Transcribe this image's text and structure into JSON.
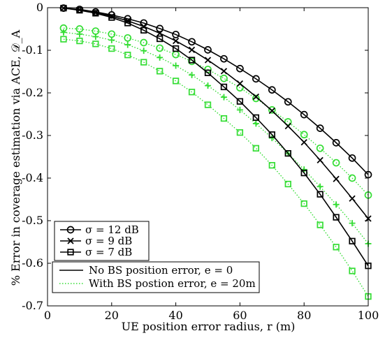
{
  "chart_data": {
    "type": "line",
    "title": "",
    "xlabel": "UE position error radius, r (m)",
    "ylabel": "% Error in coverage estimation via ACE, 𝒟_A",
    "xlim": [
      0,
      100
    ],
    "ylim": [
      -0.7,
      0
    ],
    "x_ticks": [
      "0",
      "20",
      "40",
      "60",
      "80",
      "100"
    ],
    "y_ticks": [
      "0",
      "-0.1",
      "-0.2",
      "-0.3",
      "-0.4",
      "-0.5",
      "-0.6",
      "-0.7"
    ],
    "x": [
      5,
      10,
      15,
      20,
      25,
      30,
      35,
      40,
      45,
      50,
      55,
      60,
      65,
      70,
      75,
      80,
      85,
      90,
      95,
      100
    ],
    "colors": {
      "no_error": "#000000",
      "with_error": "#33dd33"
    },
    "series": [
      {
        "sigma": "12 dB",
        "style": "solid",
        "marker": "circle",
        "values": [
          -0.001,
          -0.004,
          -0.01,
          -0.017,
          -0.026,
          -0.036,
          -0.049,
          -0.063,
          -0.08,
          -0.099,
          -0.12,
          -0.143,
          -0.167,
          -0.193,
          -0.221,
          -0.251,
          -0.283,
          -0.317,
          -0.353,
          -0.392
        ]
      },
      {
        "sigma": "9 dB",
        "style": "solid",
        "marker": "x",
        "values": [
          -0.001,
          -0.005,
          -0.011,
          -0.02,
          -0.031,
          -0.044,
          -0.06,
          -0.078,
          -0.099,
          -0.123,
          -0.149,
          -0.178,
          -0.209,
          -0.242,
          -0.278,
          -0.316,
          -0.358,
          -0.402,
          -0.448,
          -0.495
        ]
      },
      {
        "sigma": "7 dB",
        "style": "solid",
        "marker": "square",
        "values": [
          -0.001,
          -0.006,
          -0.013,
          -0.023,
          -0.036,
          -0.053,
          -0.073,
          -0.096,
          -0.123,
          -0.153,
          -0.186,
          -0.22,
          -0.258,
          -0.298,
          -0.342,
          -0.388,
          -0.438,
          -0.492,
          -0.548,
          -0.606
        ]
      },
      {
        "sigma": "12 dB",
        "style": "dotted",
        "marker": "circle",
        "values": [
          -0.048,
          -0.05,
          -0.055,
          -0.062,
          -0.071,
          -0.082,
          -0.095,
          -0.11,
          -0.126,
          -0.145,
          -0.166,
          -0.188,
          -0.213,
          -0.24,
          -0.268,
          -0.298,
          -0.33,
          -0.364,
          -0.4,
          -0.44
        ]
      },
      {
        "sigma": "9 dB",
        "style": "dotted",
        "marker": "plus",
        "values": [
          -0.058,
          -0.062,
          -0.068,
          -0.076,
          -0.087,
          -0.101,
          -0.117,
          -0.136,
          -0.158,
          -0.183,
          -0.21,
          -0.24,
          -0.272,
          -0.306,
          -0.342,
          -0.38,
          -0.42,
          -0.462,
          -0.506,
          -0.554
        ]
      },
      {
        "sigma": "7 dB",
        "style": "dotted",
        "marker": "square",
        "values": [
          -0.074,
          -0.078,
          -0.085,
          -0.096,
          -0.111,
          -0.128,
          -0.149,
          -0.172,
          -0.198,
          -0.228,
          -0.26,
          -0.293,
          -0.33,
          -0.37,
          -0.414,
          -0.46,
          -0.51,
          -0.562,
          -0.618,
          -0.678
        ]
      }
    ],
    "legend_markers": [
      {
        "marker": "circle",
        "label": "σ = 12 dB"
      },
      {
        "marker": "x",
        "label": "σ = 9 dB"
      },
      {
        "marker": "square",
        "label": "σ = 7 dB"
      }
    ],
    "legend_lines": [
      {
        "style": "solid",
        "label": "No BS position error, e = 0"
      },
      {
        "style": "dotted",
        "label": "With BS postion error, e = 20m"
      }
    ],
    "grid": false,
    "legend_position": "bottom-left"
  }
}
